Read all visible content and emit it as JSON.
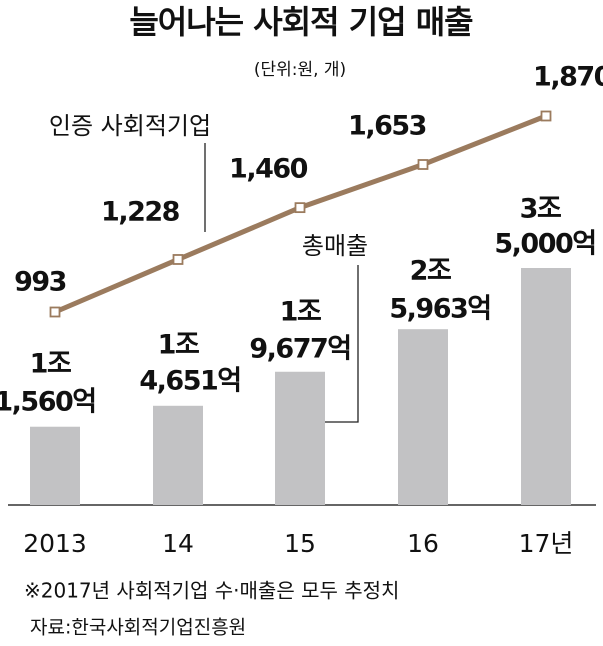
{
  "chart_data": {
    "type": "bar-line",
    "title": "늘어나는 사회적 기업 매출",
    "subtitle": "(단위:원, 개)",
    "categories": [
      "2013",
      "14",
      "15",
      "16",
      "17년"
    ],
    "series": [
      {
        "name": "총매출",
        "type": "bar",
        "color": "#c2c2c4",
        "values": [
          11560,
          14651,
          19677,
          25963,
          35000
        ],
        "value_labels": [
          [
            "1조",
            "1,560억"
          ],
          [
            "1조",
            "4,651억"
          ],
          [
            "1조",
            "9,677억"
          ],
          [
            "2조",
            "5,963억"
          ],
          [
            "3조",
            "5,000억"
          ]
        ]
      },
      {
        "name": "인증 사회적기업",
        "type": "line",
        "color": "#9b7b5e",
        "values": [
          993,
          1228,
          1460,
          1653,
          1870
        ],
        "value_labels": [
          "993",
          "1,228",
          "1,460",
          "1,653",
          "1,870"
        ]
      }
    ],
    "notes": [
      "※2017년 사회적기업 수·매출은 모두 추정치",
      "자료:한국사회적기업진흥원"
    ]
  }
}
